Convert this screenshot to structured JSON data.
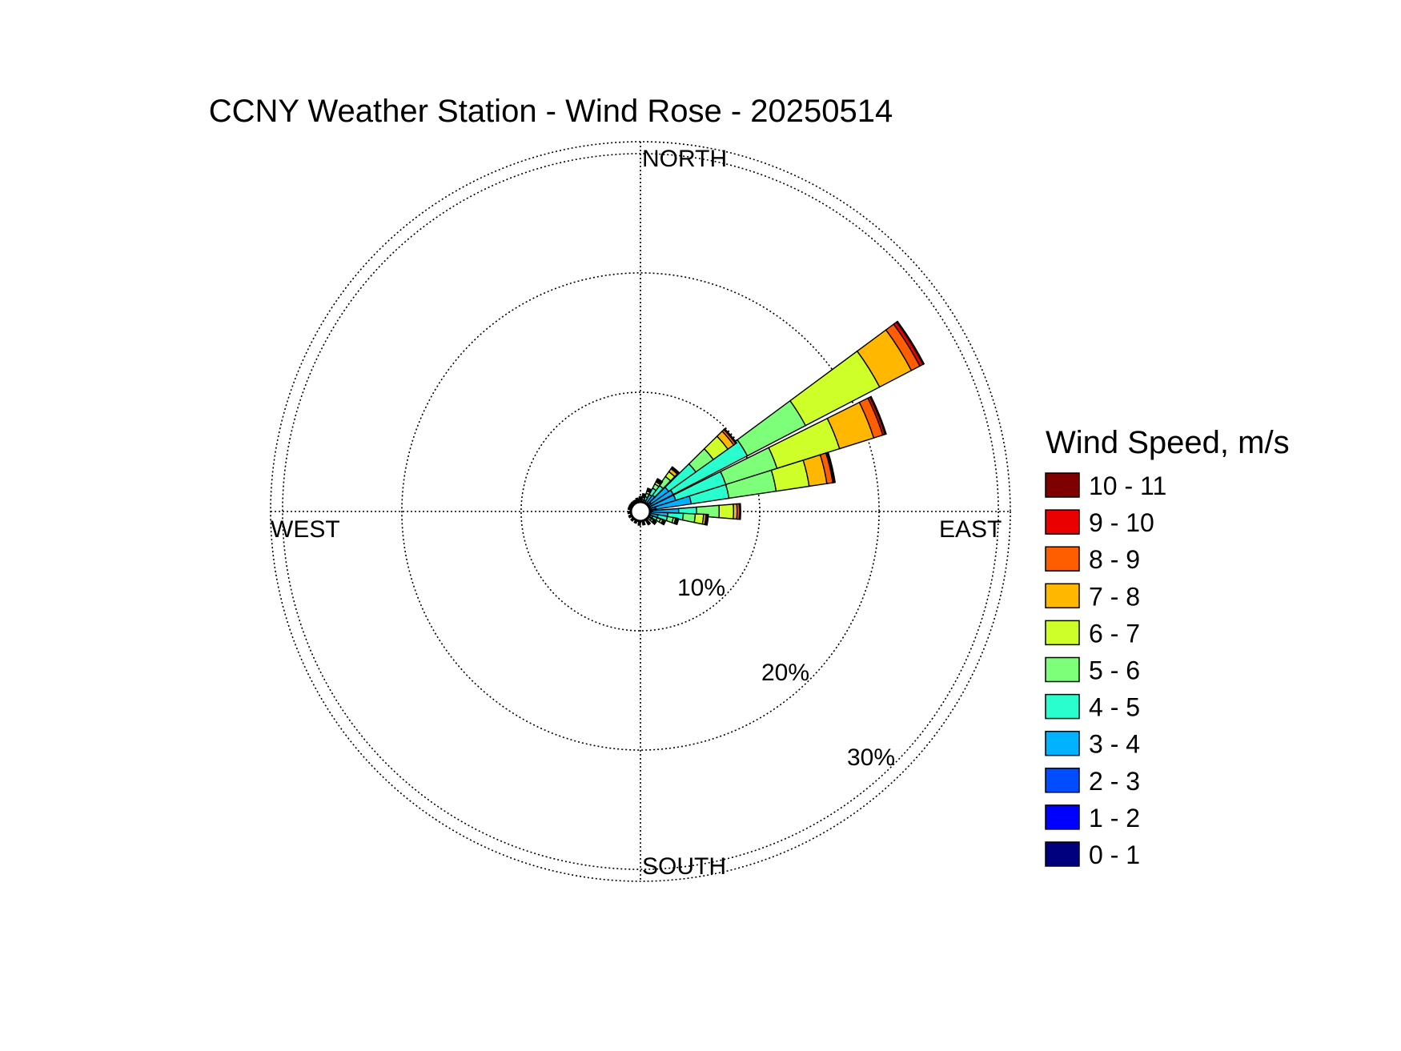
{
  "chart_data": {
    "type": "wind-rose",
    "title": "CCNY Weather Station - Wind Rose - 20250514",
    "directions": {
      "north": "NORTH",
      "east": "EAST",
      "south": "SOUTH",
      "west": "WEST"
    },
    "radial_unit": "%",
    "radial_max": 31,
    "rings": [
      {
        "value": 10,
        "label": "10%"
      },
      {
        "value": 20,
        "label": "20%"
      },
      {
        "value": 30,
        "label": "30%"
      }
    ],
    "legend": {
      "title": "Wind Speed, m/s",
      "placement": "right"
    },
    "speed_bins": [
      {
        "label": "0 - 1",
        "color": "#00007f"
      },
      {
        "label": "1 - 2",
        "color": "#0000ff"
      },
      {
        "label": "2 - 3",
        "color": "#004cff"
      },
      {
        "label": "3 - 4",
        "color": "#00b2ff"
      },
      {
        "label": "4 - 5",
        "color": "#29ffce"
      },
      {
        "label": "5 - 6",
        "color": "#7dff7a"
      },
      {
        "label": "6 - 7",
        "color": "#ceff29"
      },
      {
        "label": "7 - 8",
        "color": "#ffb700"
      },
      {
        "label": "8 - 9",
        "color": "#ff5e00"
      },
      {
        "label": "9 - 10",
        "color": "#ea0000"
      },
      {
        "label": "10 - 11",
        "color": "#7f0000"
      }
    ],
    "sectors": [
      {
        "direction_deg": 58,
        "cumulative": [
          0.1,
          0.3,
          0.9,
          3.1,
          10.1,
          15.6,
          22.6,
          25.6,
          26.4,
          26.7,
          26.8
        ]
      },
      {
        "direction_deg": 68,
        "cumulative": [
          0.1,
          0.3,
          0.9,
          3.1,
          7.5,
          12.0,
          17.5,
          20.5,
          21.3,
          21.5,
          21.6
        ]
      },
      {
        "direction_deg": 77,
        "cumulative": [
          0.1,
          0.3,
          1.3,
          4.3,
          7.5,
          11.5,
          14.3,
          15.8,
          16.3,
          16.4,
          16.5
        ]
      },
      {
        "direction_deg": 50,
        "cumulative": [
          0.1,
          0.3,
          1.1,
          2.9,
          5.7,
          7.5,
          9.0,
          9.6,
          9.8,
          9.85,
          9.9
        ]
      },
      {
        "direction_deg": 90,
        "cumulative": [
          0.1,
          0.3,
          1.0,
          3.2,
          4.7,
          6.6,
          7.8,
          8.1,
          8.3,
          8.35,
          8.4
        ]
      },
      {
        "direction_deg": 97,
        "cumulative": [
          0.1,
          0.3,
          0.9,
          2.3,
          3.6,
          4.6,
          5.3,
          5.5,
          5.6,
          5.65,
          5.7
        ]
      },
      {
        "direction_deg": 40,
        "cumulative": [
          0.1,
          0.3,
          0.9,
          1.7,
          2.7,
          3.6,
          4.1,
          4.4,
          4.5,
          4.55,
          4.6
        ]
      },
      {
        "direction_deg": 105,
        "cumulative": [
          0.1,
          0.3,
          0.8,
          1.5,
          2.3,
          2.8,
          3.0,
          3.1,
          3.15,
          3.2,
          3.25
        ]
      },
      {
        "direction_deg": 32,
        "cumulative": [
          0.1,
          0.3,
          0.8,
          1.6,
          2.2,
          2.6,
          2.8,
          2.9,
          3.0,
          3.05,
          3.1
        ]
      },
      {
        "direction_deg": 115,
        "cumulative": [
          0.1,
          0.3,
          0.6,
          1.1,
          1.5,
          1.8,
          2.0,
          2.1,
          2.15,
          2.2,
          2.25
        ]
      },
      {
        "direction_deg": 22,
        "cumulative": [
          0.1,
          0.3,
          0.6,
          1.0,
          1.3,
          1.6,
          1.8,
          1.9,
          1.95,
          2.0,
          2.05
        ]
      },
      {
        "direction_deg": 128,
        "cumulative": [
          0.1,
          0.3,
          0.5,
          0.8,
          1.1,
          1.3,
          1.4,
          1.45,
          1.5,
          1.55,
          1.6
        ]
      },
      {
        "direction_deg": 12,
        "cumulative": [
          0.1,
          0.3,
          0.5,
          0.8,
          1.0,
          1.2,
          1.3,
          1.35,
          1.4,
          1.45,
          1.5
        ]
      },
      {
        "direction_deg": 145,
        "cumulative": [
          0.1,
          0.3,
          0.5,
          0.7,
          0.9,
          1.0,
          1.1,
          1.15,
          1.2,
          1.25,
          1.3
        ]
      },
      {
        "direction_deg": 0,
        "cumulative": [
          0.1,
          0.3,
          0.5,
          0.7,
          0.9,
          1.0,
          1.05,
          1.1,
          1.15,
          1.2,
          1.25
        ]
      },
      {
        "direction_deg": 165,
        "cumulative": [
          0.1,
          0.3,
          0.5,
          0.6,
          0.8,
          0.9,
          0.95,
          1.0,
          1.05,
          1.1,
          1.15
        ]
      },
      {
        "direction_deg": 345,
        "cumulative": [
          0.1,
          0.3,
          0.5,
          0.6,
          0.8,
          0.9,
          0.95,
          1.0,
          1.05,
          1.1,
          1.15
        ]
      },
      {
        "direction_deg": 185,
        "cumulative": [
          0.1,
          0.3,
          0.5,
          0.6,
          0.8,
          0.9,
          0.95,
          1.0,
          1.05,
          1.1,
          1.15
        ]
      },
      {
        "direction_deg": 330,
        "cumulative": [
          0.1,
          0.3,
          0.45,
          0.55,
          0.7,
          0.8,
          0.85,
          0.9,
          0.95,
          1.0,
          1.05
        ]
      },
      {
        "direction_deg": 205,
        "cumulative": [
          0.1,
          0.3,
          0.45,
          0.55,
          0.7,
          0.8,
          0.85,
          0.9,
          0.95,
          1.0,
          1.05
        ]
      },
      {
        "direction_deg": 315,
        "cumulative": [
          0.1,
          0.3,
          0.45,
          0.55,
          0.7,
          0.8,
          0.85,
          0.9,
          0.95,
          1.0,
          1.05
        ]
      },
      {
        "direction_deg": 225,
        "cumulative": [
          0.1,
          0.3,
          0.45,
          0.55,
          0.7,
          0.8,
          0.85,
          0.9,
          0.95,
          1.0,
          1.05
        ]
      },
      {
        "direction_deg": 300,
        "cumulative": [
          0.1,
          0.3,
          0.45,
          0.55,
          0.7,
          0.8,
          0.85,
          0.9,
          0.95,
          1.0,
          1.05
        ]
      },
      {
        "direction_deg": 245,
        "cumulative": [
          0.1,
          0.3,
          0.45,
          0.55,
          0.7,
          0.8,
          0.85,
          0.9,
          0.95,
          1.0,
          1.05
        ]
      },
      {
        "direction_deg": 285,
        "cumulative": [
          0.1,
          0.3,
          0.45,
          0.55,
          0.7,
          0.8,
          0.85,
          0.9,
          0.95,
          1.0,
          1.05
        ]
      },
      {
        "direction_deg": 265,
        "cumulative": [
          0.1,
          0.3,
          0.45,
          0.55,
          0.7,
          0.8,
          0.85,
          0.9,
          0.95,
          1.0,
          1.05
        ]
      }
    ]
  }
}
